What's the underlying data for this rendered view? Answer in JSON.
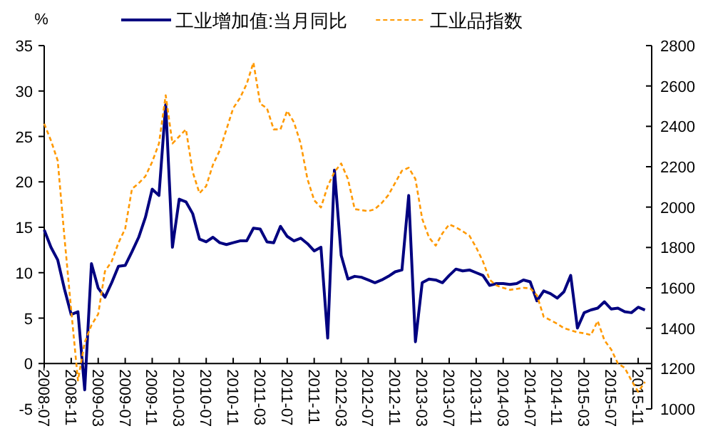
{
  "chart_data": {
    "type": "line",
    "ylabel": "%",
    "legend": "top",
    "grid": false,
    "x": [
      "2008-07",
      "2008-08",
      "2008-09",
      "2008-10",
      "2008-11",
      "2008-12",
      "2009-01",
      "2009-02",
      "2009-03",
      "2009-04",
      "2009-05",
      "2009-06",
      "2009-07",
      "2009-08",
      "2009-09",
      "2009-10",
      "2009-11",
      "2009-12",
      "2010-01",
      "2010-02",
      "2010-03",
      "2010-04",
      "2010-05",
      "2010-06",
      "2010-07",
      "2010-08",
      "2010-09",
      "2010-10",
      "2010-11",
      "2010-12",
      "2011-01",
      "2011-02",
      "2011-03",
      "2011-04",
      "2011-05",
      "2011-06",
      "2011-07",
      "2011-08",
      "2011-09",
      "2011-10",
      "2011-11",
      "2011-12",
      "2012-01",
      "2012-02",
      "2012-03",
      "2012-04",
      "2012-05",
      "2012-06",
      "2012-07",
      "2012-08",
      "2012-09",
      "2012-10",
      "2012-11",
      "2012-12",
      "2013-01",
      "2013-02",
      "2013-03",
      "2013-04",
      "2013-05",
      "2013-06",
      "2013-07",
      "2013-08",
      "2013-09",
      "2013-10",
      "2013-11",
      "2013-12",
      "2014-01",
      "2014-02",
      "2014-03",
      "2014-04",
      "2014-05",
      "2014-06",
      "2014-07",
      "2014-08",
      "2014-09",
      "2014-10",
      "2014-11",
      "2014-12",
      "2015-01",
      "2015-02",
      "2015-03",
      "2015-04",
      "2015-05",
      "2015-06",
      "2015-07",
      "2015-08",
      "2015-09",
      "2015-10",
      "2015-11",
      "2015-12"
    ],
    "series": [
      {
        "name": "工业增加值:当月同比",
        "color": "#000080",
        "line_style": "solid",
        "values": [
          14.7,
          12.8,
          11.4,
          8.2,
          5.4,
          5.7,
          -2.9,
          11.0,
          8.3,
          7.3,
          8.9,
          10.7,
          10.8,
          12.3,
          13.9,
          16.1,
          19.2,
          18.5,
          28.5,
          12.8,
          18.1,
          17.8,
          16.5,
          13.7,
          13.4,
          13.9,
          13.3,
          13.1,
          13.3,
          13.5,
          13.5,
          14.9,
          14.8,
          13.4,
          13.3,
          15.1,
          14.0,
          13.5,
          13.8,
          13.2,
          12.4,
          12.8,
          2.8,
          21.3,
          11.9,
          9.3,
          9.6,
          9.5,
          9.2,
          8.9,
          9.2,
          9.6,
          10.1,
          10.3,
          18.5,
          2.4,
          8.9,
          9.3,
          9.2,
          8.9,
          9.7,
          10.4,
          10.2,
          10.3,
          10.0,
          9.7,
          8.6,
          8.8,
          8.8,
          8.7,
          8.8,
          9.2,
          9.0,
          6.9,
          8.0,
          7.7,
          7.2,
          7.9,
          9.7,
          3.9,
          5.6,
          5.9,
          6.1,
          6.8,
          6.0,
          6.1,
          5.7,
          5.6,
          6.2,
          5.9
        ]
      },
      {
        "name": "工业品指数",
        "color": "#ff9900",
        "line_style": "dashed",
        "axis": "y2",
        "values": [
          2413,
          2330,
          2230,
          1850,
          1490,
          1141,
          1330,
          1415,
          1470,
          1682,
          1731,
          1823,
          1893,
          2090,
          2118,
          2153,
          2224,
          2315,
          2554,
          2315,
          2350,
          2385,
          2174,
          2069,
          2104,
          2210,
          2280,
          2385,
          2490,
          2540,
          2610,
          2716,
          2512,
          2490,
          2385,
          2385,
          2477,
          2420,
          2315,
          2139,
          2034,
          1998,
          2104,
          2174,
          2216,
          2139,
          1990,
          1985,
          1980,
          1990,
          2020,
          2060,
          2120,
          2180,
          2195,
          2139,
          1942,
          1850,
          1809,
          1870,
          1914,
          1900,
          1880,
          1858,
          1800,
          1731,
          1640,
          1612,
          1600,
          1590,
          1595,
          1600,
          1598,
          1563,
          1457,
          1440,
          1422,
          1400,
          1390,
          1380,
          1375,
          1366,
          1436,
          1340,
          1295,
          1225,
          1204,
          1141,
          1085,
          1134
        ]
      }
    ],
    "xlim": [
      "2008-07",
      "2016-01"
    ],
    "xticks": [
      "2008-07",
      "2008-11",
      "2009-03",
      "2009-07",
      "2009-11",
      "2010-03",
      "2010-07",
      "2010-11",
      "2011-03",
      "2011-07",
      "2011-11",
      "2012-03",
      "2012-07",
      "2012-11",
      "2013-03",
      "2013-07",
      "2013-11",
      "2014-03",
      "2014-07",
      "2014-11",
      "2015-03",
      "2015-07",
      "2015-11"
    ],
    "ylim": [
      -5,
      35
    ],
    "yticks": [
      -5,
      0,
      5,
      10,
      15,
      20,
      25,
      30,
      35
    ],
    "y2lim": [
      1000,
      2800
    ],
    "y2ticks": [
      1000,
      1200,
      1400,
      1600,
      1800,
      2000,
      2200,
      2400,
      2600,
      2800
    ]
  }
}
